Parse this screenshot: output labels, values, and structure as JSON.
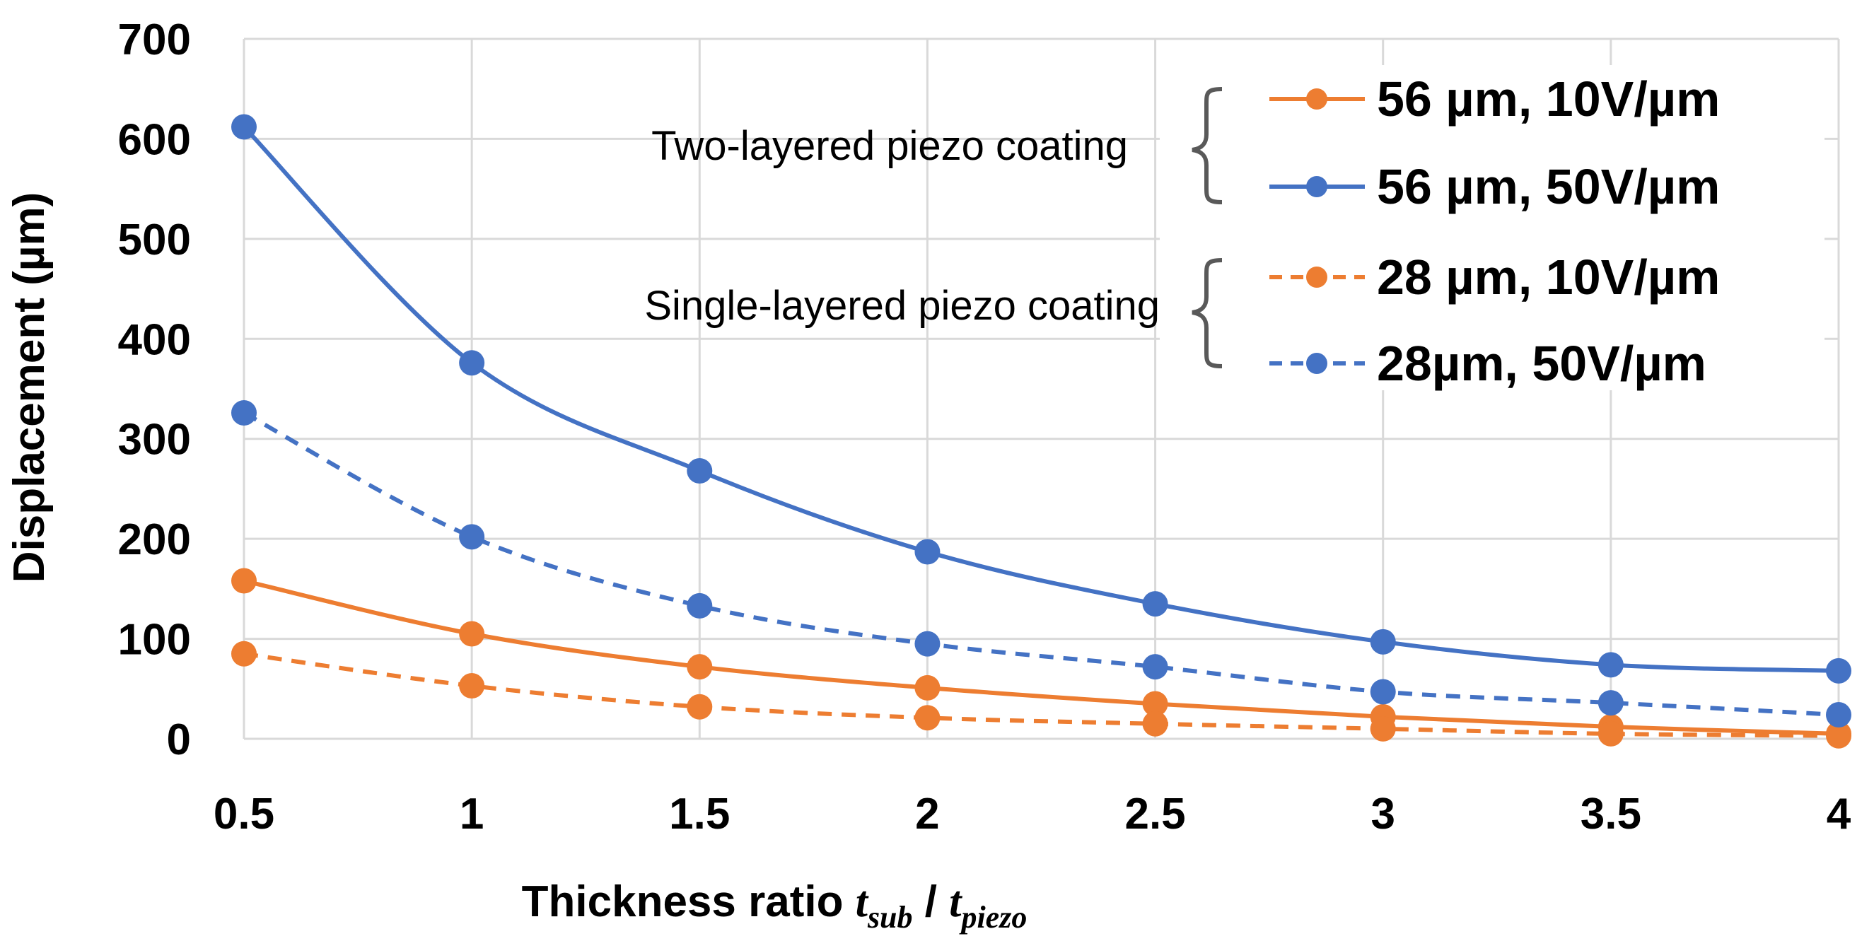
{
  "chart_data": {
    "type": "line",
    "title": "",
    "xlabel_prefix": "Thickness ratio ",
    "xlabel_var1": "t",
    "xlabel_sub1": "sub",
    "xlabel_sep": " / ",
    "xlabel_var2": "t",
    "xlabel_sub2": "piezo",
    "ylabel": "Displacement (µm)",
    "xlim": [
      0.5,
      4
    ],
    "ylim": [
      0,
      700
    ],
    "x_ticks": [
      "0.5",
      "1",
      "1.5",
      "2",
      "2.5",
      "3",
      "3.5",
      "4"
    ],
    "y_ticks": [
      "0",
      "100",
      "200",
      "300",
      "400",
      "500",
      "600",
      "700"
    ],
    "grid": true,
    "legend_position": "top-right",
    "x": [
      0.5,
      1,
      1.5,
      2,
      2.5,
      3,
      3.5,
      4
    ],
    "series": [
      {
        "name": "56 µm, 10V/µm",
        "color": "#ED7D31",
        "style": "solid",
        "values": [
          158,
          105,
          72,
          51,
          35,
          22,
          12,
          5
        ]
      },
      {
        "name": "56 µm, 50V/µm",
        "color": "#4472C4",
        "style": "solid",
        "values": [
          612,
          376,
          268,
          187,
          135,
          97,
          74,
          68
        ]
      },
      {
        "name": "28 µm, 10V/µm",
        "color": "#ED7D31",
        "style": "dashed",
        "values": [
          85,
          53,
          32,
          21,
          15,
          10,
          5,
          3
        ]
      },
      {
        "name": "28µm, 50V/µm",
        "color": "#4472C4",
        "style": "dashed",
        "values": [
          326,
          202,
          133,
          95,
          72,
          47,
          36,
          24
        ]
      }
    ],
    "annotations": [
      {
        "text": "Two-layered piezo coating",
        "groups_series": [
          0,
          1
        ]
      },
      {
        "text": "Single-layered piezo coating",
        "groups_series": [
          2,
          3
        ]
      }
    ]
  }
}
